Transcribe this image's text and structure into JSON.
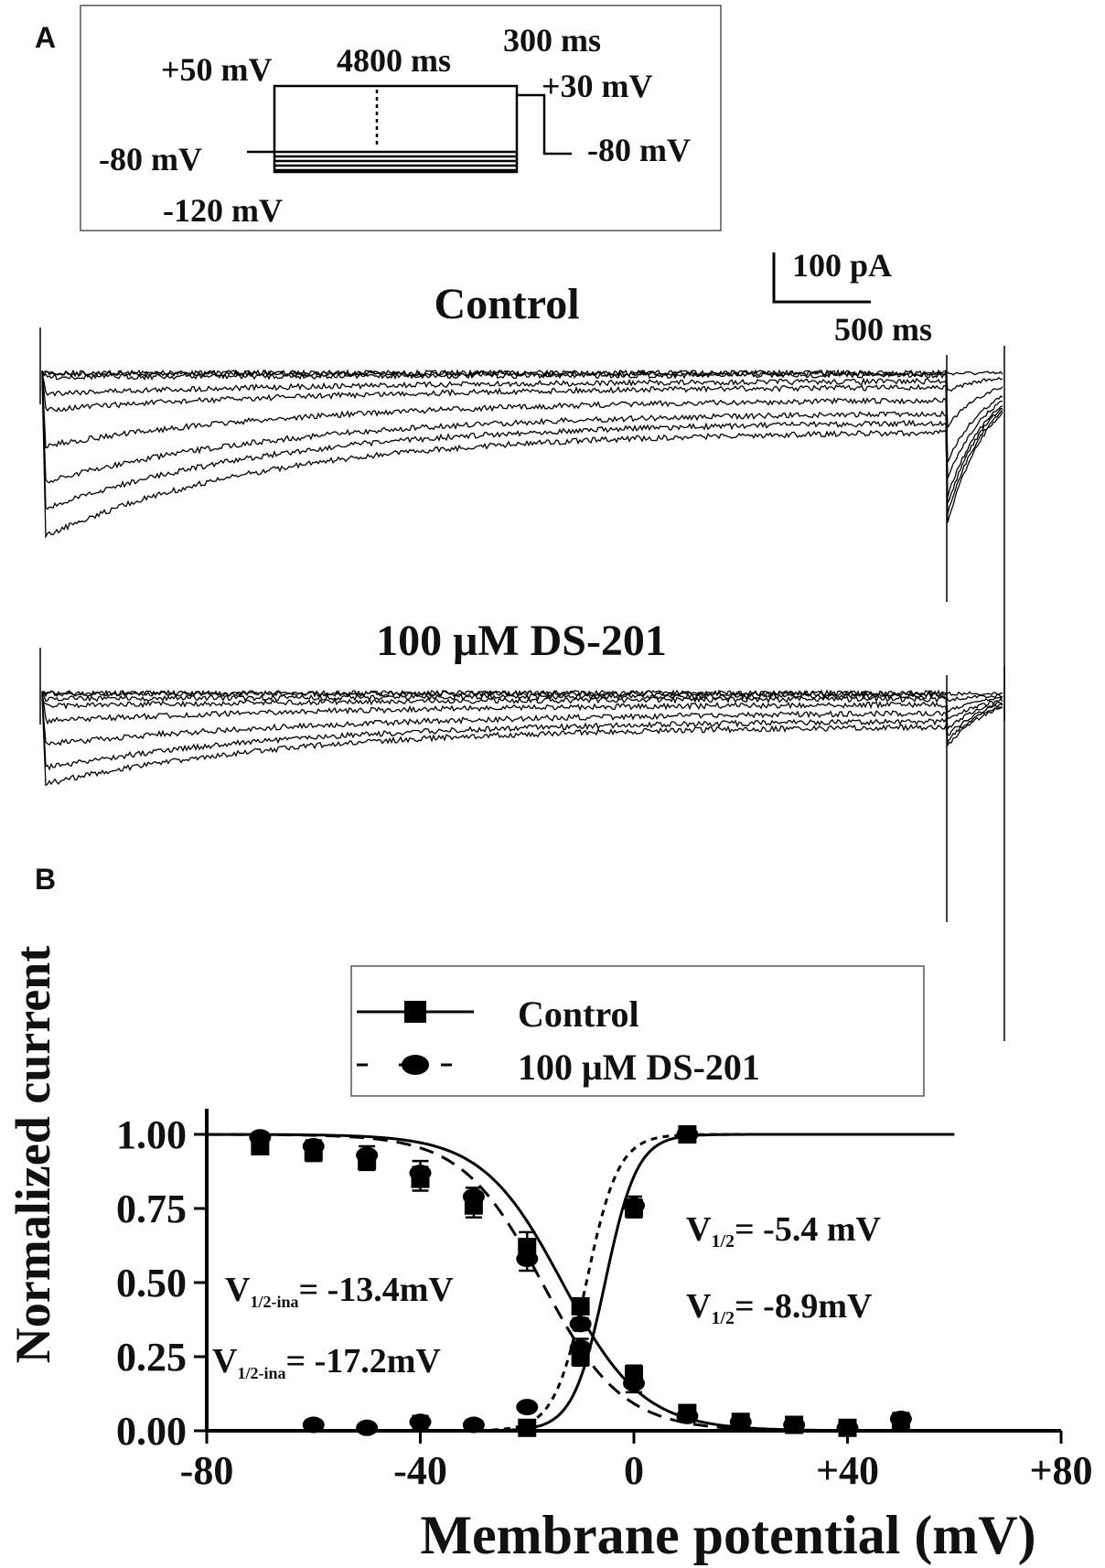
{
  "panel_a": {
    "label": "A",
    "protocol": {
      "hold_left": "-80 mV",
      "top_level": "+50 mV",
      "bottom_level": "-120 mV",
      "step_duration": "4800 ms",
      "test_duration": "300 ms",
      "test_level": "+30 mV",
      "hold_right": "-80 mV"
    },
    "scale_current": "100 pA",
    "scale_time": "500 ms",
    "trace_control_title": "Control",
    "trace_drug_title": "100 μM DS-201"
  },
  "chart_data": {
    "label": "B",
    "type": "scatter",
    "xlabel": "Membrane potential (mV)",
    "ylabel": "Normalized current",
    "xlim": [
      -80,
      80
    ],
    "ylim": [
      0,
      1.0
    ],
    "x_ticks": [
      "-80",
      "-40",
      "0",
      "+40",
      "+80"
    ],
    "y_ticks": [
      "0.00",
      "0.25",
      "0.50",
      "0.75",
      "1.00"
    ],
    "legend": {
      "placement": "top-center",
      "entries": [
        "Control",
        "100 μM DS-201"
      ]
    },
    "annotations": {
      "control_act": {
        "main": "V",
        "sub": "1/2",
        "tail": "= -5.4 mV"
      },
      "drug_act": {
        "main": "V",
        "sub": "1/2",
        "tail": "= -8.9mV"
      },
      "control_inact": {
        "main": "V",
        "sub": "1/2-ina",
        "tail": "= -13.4mV"
      },
      "drug_inact": {
        "main": "V",
        "sub": "1/2-ina",
        "tail": "= -17.2mV"
      }
    },
    "series": [
      {
        "name": "Control",
        "kind": "inactivation",
        "marker": "square",
        "x": [
          -70,
          -60,
          -50,
          -40,
          -30,
          -20,
          -10,
          0,
          10,
          20,
          30,
          40,
          50
        ],
        "y": [
          0.96,
          0.94,
          0.91,
          0.85,
          0.76,
          0.62,
          0.42,
          0.19,
          0.06,
          0.03,
          0.02,
          0.01,
          0.03
        ],
        "err": [
          0.02,
          0.03,
          0.03,
          0.04,
          0.04,
          0.05,
          0.02,
          0.03,
          0.02,
          0.01,
          0.01,
          0.01,
          0.02
        ],
        "fit": {
          "v_half": -13.4,
          "k": 7.5,
          "style": "solid"
        }
      },
      {
        "name": "100 μM DS-201",
        "kind": "inactivation",
        "marker": "circle",
        "x": [
          -70,
          -60,
          -50,
          -40,
          -30,
          -20,
          -10,
          0,
          10,
          20,
          30,
          40,
          50
        ],
        "y": [
          0.99,
          0.96,
          0.93,
          0.87,
          0.79,
          0.58,
          0.36,
          0.16,
          0.05,
          0.03,
          0.02,
          0.01,
          0.04
        ],
        "err": [
          0.01,
          0.02,
          0.03,
          0.04,
          0.03,
          0.04,
          0.02,
          0.03,
          0.02,
          0.01,
          0.01,
          0.01,
          0.02
        ],
        "fit": {
          "v_half": -17.2,
          "k": 7.5,
          "style": "dashed"
        }
      },
      {
        "name": "Control",
        "kind": "activation",
        "marker": "square",
        "x": [
          -20,
          -10,
          0,
          10
        ],
        "y": [
          0.01,
          0.25,
          0.75,
          1.0
        ],
        "err": [
          0.01,
          0.03,
          0.03,
          0.01
        ],
        "fit": {
          "v_half": -5.4,
          "k": 3.0,
          "style": "solid"
        }
      },
      {
        "name": "100 μM DS-201",
        "kind": "activation",
        "marker": "circle",
        "x": [
          -60,
          -50,
          -40,
          -30,
          -20,
          -10,
          0,
          10
        ],
        "y": [
          0.02,
          0.01,
          0.03,
          0.02,
          0.08,
          0.28,
          0.76,
          1.0
        ],
        "err": [
          0.01,
          0.01,
          0.02,
          0.01,
          0.01,
          0.03,
          0.03,
          0.01
        ],
        "fit": {
          "v_half": -8.9,
          "k": 3.0,
          "style": "dotted"
        }
      }
    ]
  }
}
